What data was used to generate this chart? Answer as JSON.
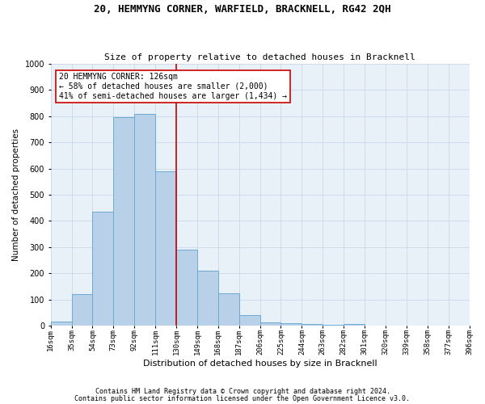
{
  "title": "20, HEMMYNG CORNER, WARFIELD, BRACKNELL, RG42 2QH",
  "subtitle": "Size of property relative to detached houses in Bracknell",
  "xlabel": "Distribution of detached houses by size in Bracknell",
  "ylabel": "Number of detached properties",
  "bar_heights": [
    15,
    120,
    435,
    795,
    810,
    590,
    290,
    210,
    125,
    40,
    12,
    10,
    5,
    2,
    6,
    0,
    0,
    0,
    0,
    0
  ],
  "bar_left_edges": [
    16,
    35,
    54,
    73,
    92,
    111,
    130,
    149,
    168,
    187,
    206,
    225,
    244,
    263,
    282,
    301,
    320,
    339,
    358,
    377
  ],
  "bin_width": 19,
  "bar_color": "#b8d0e8",
  "bar_edge_color": "#6aaad4",
  "grid_color": "#c8d8e8",
  "background_color": "#e8f0f8",
  "vline_x": 130,
  "vline_color": "#cc0000",
  "annotation_text": "20 HEMMYNG CORNER: 126sqm\n← 58% of detached houses are smaller (2,000)\n41% of semi-detached houses are larger (1,434) →",
  "annotation_box_color": "#ffffff",
  "annotation_border_color": "#cc0000",
  "footer1": "Contains HM Land Registry data © Crown copyright and database right 2024.",
  "footer2": "Contains public sector information licensed under the Open Government Licence v3.0.",
  "ylim": [
    0,
    1000
  ],
  "yticks": [
    0,
    100,
    200,
    300,
    400,
    500,
    600,
    700,
    800,
    900,
    1000
  ],
  "xtick_labels": [
    "16sqm",
    "35sqm",
    "54sqm",
    "73sqm",
    "92sqm",
    "111sqm",
    "130sqm",
    "149sqm",
    "168sqm",
    "187sqm",
    "206sqm",
    "225sqm",
    "244sqm",
    "263sqm",
    "282sqm",
    "301sqm",
    "320sqm",
    "339sqm",
    "358sqm",
    "377sqm",
    "396sqm"
  ],
  "xtick_positions": [
    16,
    35,
    54,
    73,
    92,
    111,
    130,
    149,
    168,
    187,
    206,
    225,
    244,
    263,
    282,
    301,
    320,
    339,
    358,
    377,
    396
  ]
}
